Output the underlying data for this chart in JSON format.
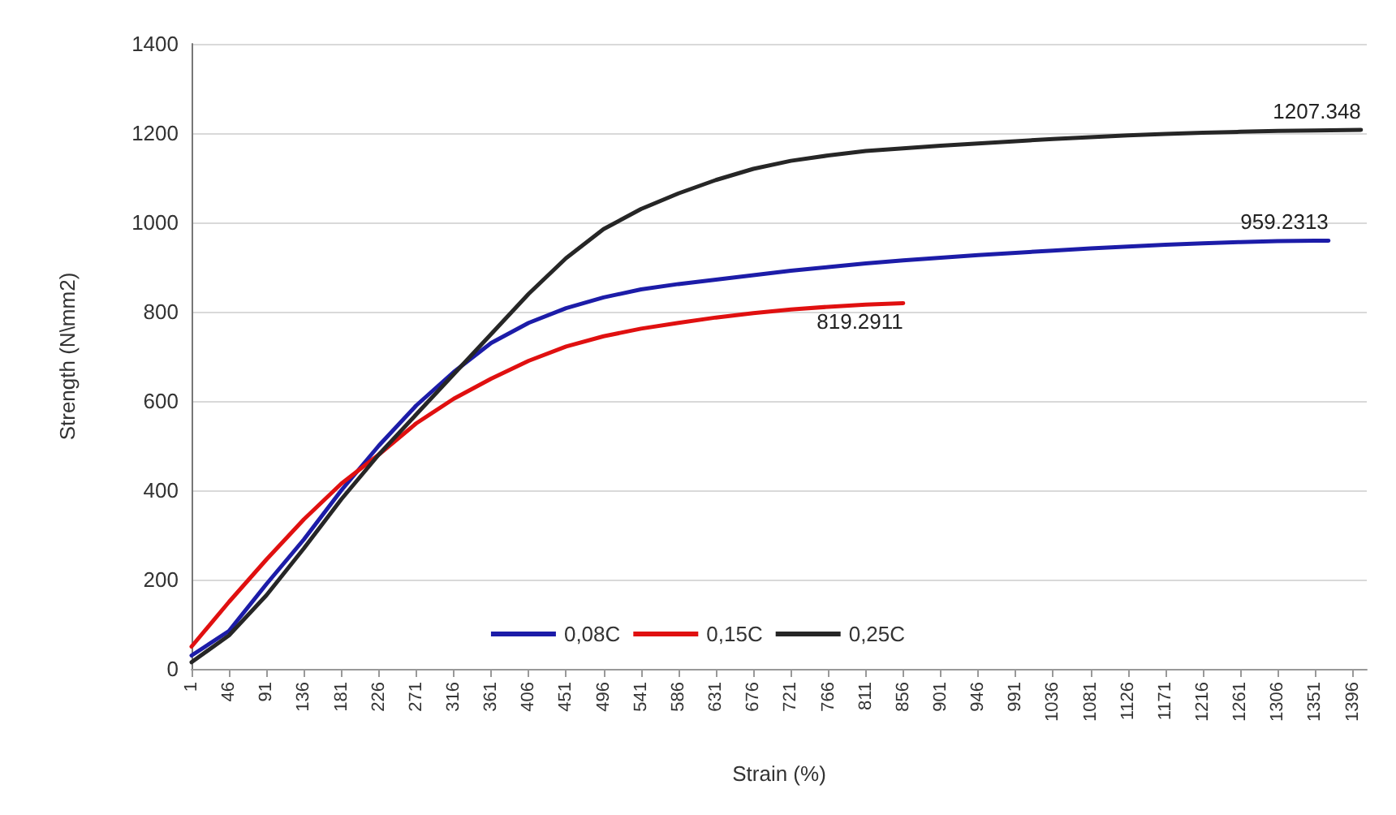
{
  "chart_data": {
    "type": "line",
    "xlabel": "Strain (%)",
    "ylabel": "Strength (N\\mm2)",
    "xlim": [
      1,
      1413
    ],
    "xticks": [
      1,
      46,
      91,
      136,
      181,
      226,
      271,
      316,
      361,
      406,
      451,
      496,
      541,
      586,
      631,
      676,
      721,
      766,
      811,
      856,
      901,
      946,
      991,
      1036,
      1081,
      1126,
      1171,
      1216,
      1261,
      1306,
      1351,
      1396
    ],
    "ylim": [
      0,
      1400
    ],
    "yticks": [
      0,
      200,
      400,
      600,
      800,
      1000,
      1200,
      1400
    ],
    "grid": "y",
    "legend": "bottom",
    "marker": "none",
    "line_style": "solid",
    "series": [
      {
        "name": "0,08C",
        "color": "#1c1ca8",
        "x": [
          1,
          46,
          91,
          136,
          181,
          226,
          271,
          316,
          361,
          406,
          451,
          496,
          541,
          586,
          631,
          676,
          721,
          766,
          811,
          856,
          901,
          946,
          991,
          1036,
          1081,
          1126,
          1171,
          1216,
          1261,
          1306,
          1351,
          1367
        ],
        "values": [
          30,
          85,
          190,
          290,
          400,
          500,
          590,
          665,
          730,
          775,
          808,
          832,
          850,
          862,
          872,
          882,
          892,
          900,
          908,
          915,
          921,
          927,
          932,
          937,
          942,
          946,
          950,
          953,
          956,
          958,
          959,
          959.2313
        ],
        "value_labels": [
          null,
          null,
          null,
          null,
          null,
          null,
          null,
          null,
          null,
          null,
          null,
          null,
          null,
          null,
          null,
          null,
          null,
          null,
          null,
          null,
          null,
          null,
          null,
          null,
          null,
          null,
          null,
          null,
          null,
          null,
          null,
          "959.2313"
        ]
      },
      {
        "name": "0,15C",
        "color": "#e01010",
        "x": [
          1,
          46,
          91,
          136,
          181,
          226,
          271,
          316,
          361,
          406,
          451,
          496,
          541,
          586,
          631,
          676,
          721,
          766,
          811,
          856
        ],
        "values": [
          50,
          150,
          245,
          335,
          415,
          480,
          550,
          605,
          650,
          690,
          722,
          745,
          762,
          775,
          787,
          797,
          805,
          811,
          816,
          819.2911
        ],
        "value_labels": [
          null,
          null,
          null,
          null,
          null,
          null,
          null,
          null,
          null,
          null,
          null,
          null,
          null,
          null,
          null,
          null,
          null,
          null,
          null,
          "819.2911"
        ]
      },
      {
        "name": "0,25C",
        "color": "#262626",
        "x": [
          1,
          46,
          91,
          136,
          181,
          226,
          271,
          316,
          361,
          406,
          451,
          496,
          541,
          586,
          631,
          676,
          721,
          766,
          811,
          856,
          901,
          946,
          991,
          1036,
          1081,
          1126,
          1171,
          1216,
          1261,
          1306,
          1351,
          1406
        ],
        "values": [
          15,
          75,
          165,
          270,
          380,
          480,
          570,
          660,
          750,
          840,
          920,
          985,
          1030,
          1065,
          1095,
          1120,
          1138,
          1150,
          1160,
          1166,
          1172,
          1177,
          1182,
          1187,
          1191,
          1195,
          1198,
          1201,
          1203,
          1205,
          1206,
          1207.348
        ],
        "value_labels": [
          null,
          null,
          null,
          null,
          null,
          null,
          null,
          null,
          null,
          null,
          null,
          null,
          null,
          null,
          null,
          null,
          null,
          null,
          null,
          null,
          null,
          null,
          null,
          null,
          null,
          null,
          null,
          null,
          null,
          null,
          null,
          "1207.348"
        ]
      }
    ]
  }
}
